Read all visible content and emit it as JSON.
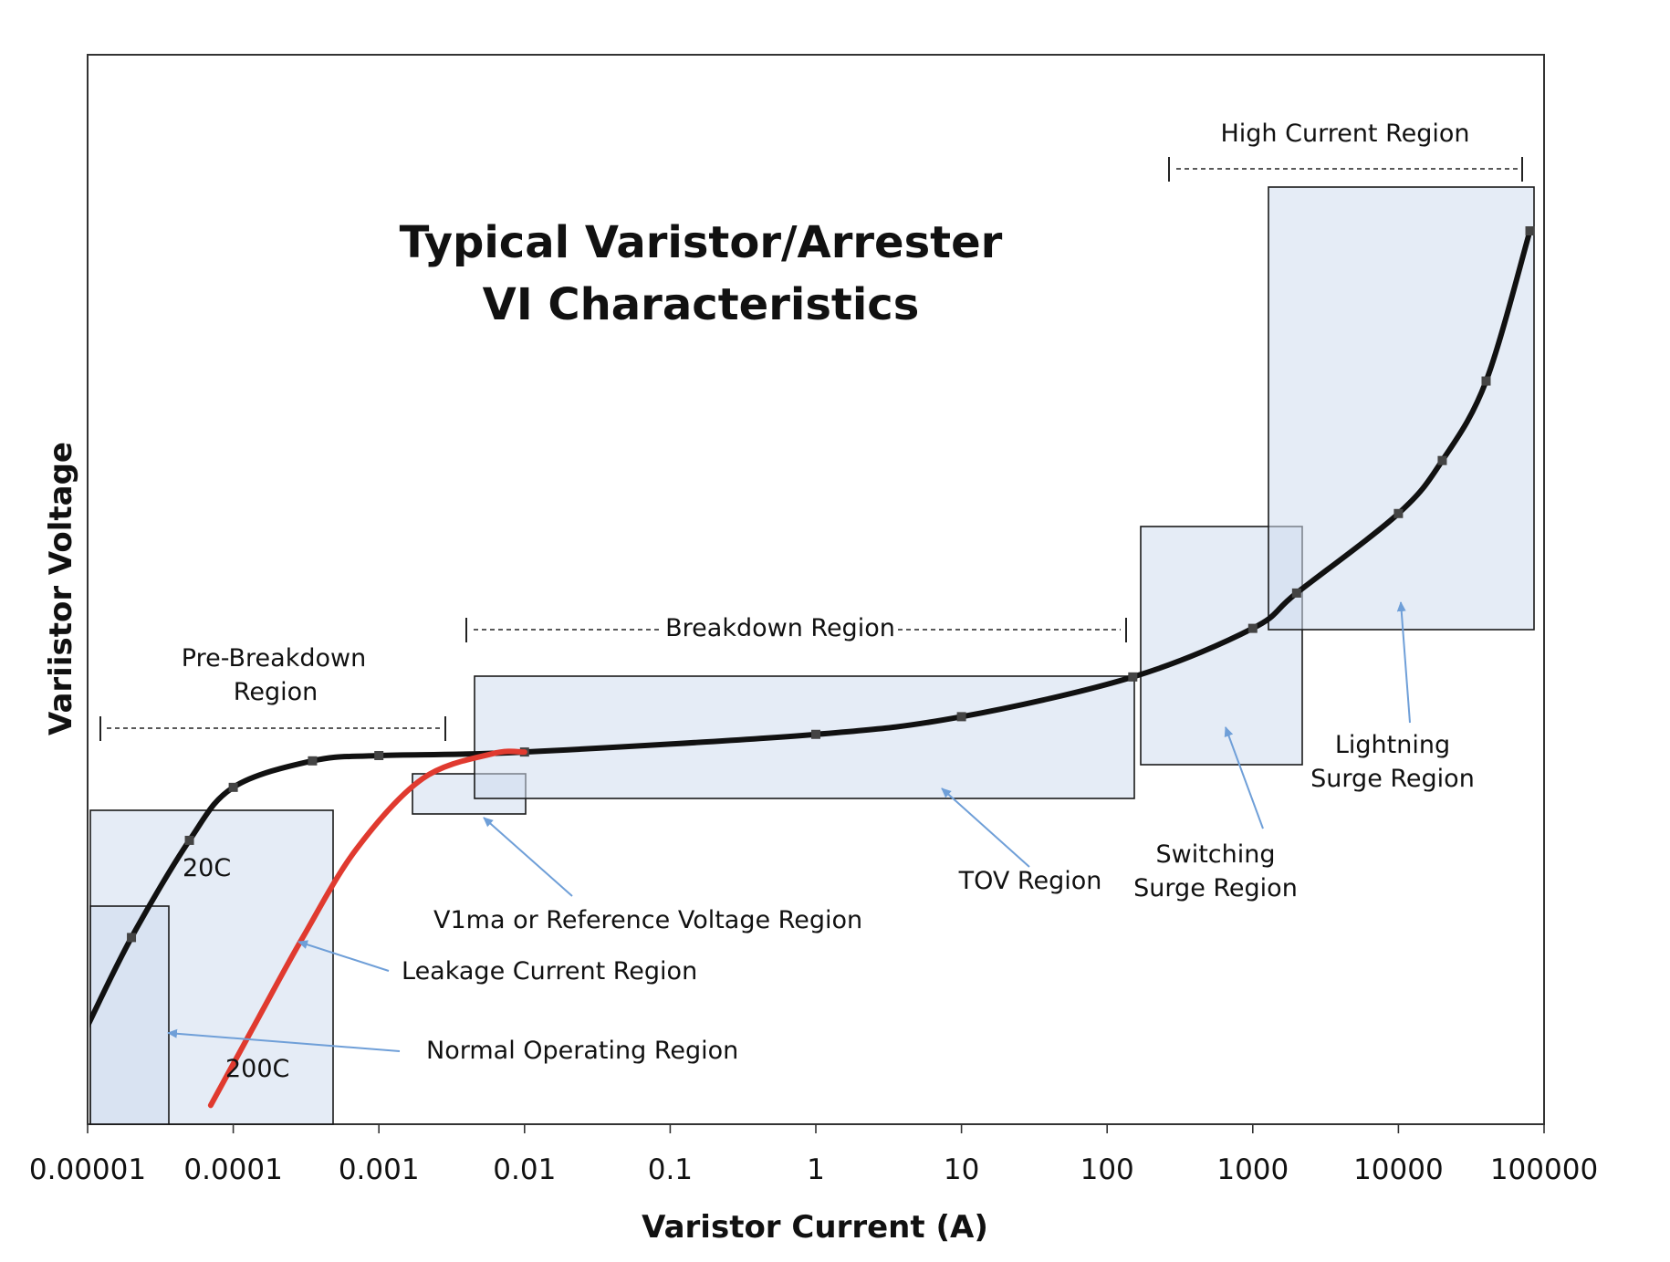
{
  "chart_data": {
    "type": "line",
    "title_lines": [
      "Typical Varistor/Arrester",
      "VI Characteristics"
    ],
    "xlabel": "Varistor Current (A)",
    "ylabel": "Variistor Voltage",
    "x_scale": "log",
    "xlim": [
      1e-05,
      100000
    ],
    "x_ticks": [
      "0.00001",
      "0.0001",
      "0.001",
      "0.01",
      "0.1",
      "1",
      "10",
      "100",
      "1000",
      "10000",
      "100000"
    ],
    "y_ticks_shown": false,
    "y_range": [
      0,
      100
    ],
    "series": [
      {
        "name": "20C",
        "color": "#111111",
        "points": [
          [
            1e-05,
            10
          ],
          [
            2e-05,
            20
          ],
          [
            5e-05,
            31
          ],
          [
            0.0001,
            37
          ],
          [
            0.00035,
            40
          ],
          [
            0.001,
            40.6
          ],
          [
            0.01,
            41
          ],
          [
            1,
            43
          ],
          [
            10,
            45
          ],
          [
            150,
            49.5
          ],
          [
            1000,
            55
          ],
          [
            2000,
            59
          ],
          [
            10000,
            68
          ],
          [
            20000,
            74
          ],
          [
            40000,
            83
          ],
          [
            80000,
            100
          ]
        ]
      },
      {
        "name": "200C",
        "color": "#e03a2f",
        "points": [
          [
            7e-05,
            1
          ],
          [
            0.00015,
            11
          ],
          [
            0.0003,
            20
          ],
          [
            0.0007,
            30
          ],
          [
            0.002,
            38
          ],
          [
            0.006,
            40.8
          ],
          [
            0.01,
            41
          ]
        ]
      }
    ],
    "annotations": {
      "normal_operating": "Normal Operating Region",
      "leakage_current": "Leakage Current Region",
      "reference_voltage": "V1ma or Reference Voltage Region",
      "tov": "TOV Region",
      "switching": [
        "Switching",
        "Surge Region"
      ],
      "lightning": [
        "Lightning",
        "Surge Region"
      ],
      "pre_breakdown": [
        "Pre-Breakdown",
        "Region"
      ],
      "breakdown": "Breakdown Region",
      "high_current": "High Current Region",
      "label_20c": "20C",
      "label_200c": "200C"
    },
    "colors": {
      "region_fill": "#cfdcef",
      "arrow": "#6f9fd8",
      "curve_20c": "#111111",
      "curve_200c": "#e03a2f"
    }
  }
}
